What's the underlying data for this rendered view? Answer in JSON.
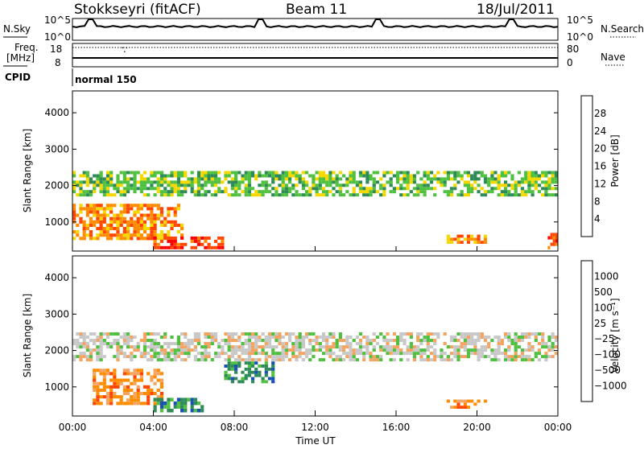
{
  "header": {
    "station": "Stokkseyri (fitACF)",
    "beam": "Beam 11",
    "date": "18/Jul/2011"
  },
  "noise_panel": {
    "left_label": "N.Sky",
    "left_ticks": [
      "10^5",
      "10^0"
    ],
    "right_label": "N.Search",
    "right_ticks": [
      "10^5",
      "10^0"
    ],
    "spike_times_h": [
      0.9,
      9.3,
      15.1,
      21.7
    ]
  },
  "freq_panel": {
    "left_label_1": "Freq.",
    "left_label_2": "[MHz]",
    "left_ticks": [
      "18",
      "8"
    ],
    "right_label": "Nave",
    "right_ticks": [
      "80",
      "0"
    ]
  },
  "cpid": {
    "label": "CPID",
    "program": "normal 150"
  },
  "chart_data": [
    {
      "type": "heatmap",
      "panel": "power",
      "ylabel": "Slant Range [km]",
      "ylim": [
        200,
        4600
      ],
      "y_ticks": [
        1000,
        2000,
        3000,
        4000
      ],
      "colorbar_label": "Power [dB]",
      "colorbar_ticks": [
        "28",
        "24",
        "20",
        "16",
        "12",
        "8",
        "4"
      ],
      "colors": [
        "#0000ff",
        "#1a4fb5",
        "#2e8b57",
        "#50c040",
        "#f5d800",
        "#ff8c00",
        "#ff4500",
        "#ff0000"
      ],
      "bands": [
        {
          "t0": 0.0,
          "t1": 24.0,
          "r0": 1700,
          "r1": 2400,
          "level": 3
        },
        {
          "t0": 0.0,
          "t1": 5.5,
          "r0": 500,
          "r1": 1500,
          "level": 5
        },
        {
          "t0": 4.0,
          "t1": 7.5,
          "r0": 250,
          "r1": 600,
          "level": 6
        },
        {
          "t0": 18.5,
          "t1": 20.5,
          "r0": 400,
          "r1": 650,
          "level": 5
        },
        {
          "t0": 23.5,
          "t1": 24.0,
          "r0": 250,
          "r1": 700,
          "level": 6
        }
      ]
    },
    {
      "type": "heatmap",
      "panel": "velocity",
      "ylabel": "Slant Range [km]",
      "ylim": [
        200,
        4600
      ],
      "y_ticks": [
        1000,
        2000,
        3000,
        4000
      ],
      "xlabel": "Time UT",
      "x_ticks": [
        "00:00",
        "04:00",
        "08:00",
        "12:00",
        "16:00",
        "20:00",
        "00:00"
      ],
      "colorbar_label": "Velocity [m s⁻¹]",
      "colorbar_ticks": [
        "1000",
        "500",
        "100",
        "25",
        "−25",
        "−100",
        "−500",
        "−1000"
      ],
      "colors": [
        "#ff0000",
        "#ff4500",
        "#ff8c00",
        "#f4a460",
        "#c8c8c8",
        "#50c040",
        "#2e8b57",
        "#1a4fb5",
        "#0000ff"
      ],
      "bands": [
        {
          "t0": 0.0,
          "t1": 24.0,
          "r0": 1700,
          "r1": 2500,
          "level": 4
        },
        {
          "t0": 1.0,
          "t1": 4.5,
          "r0": 500,
          "r1": 1500,
          "level": 2
        },
        {
          "t0": 4.0,
          "t1": 6.5,
          "r0": 300,
          "r1": 700,
          "level": 6
        },
        {
          "t0": 7.5,
          "t1": 10.0,
          "r0": 1100,
          "r1": 1700,
          "level": 6
        },
        {
          "t0": 18.5,
          "t1": 20.5,
          "r0": 400,
          "r1": 650,
          "level": 2
        }
      ]
    }
  ]
}
